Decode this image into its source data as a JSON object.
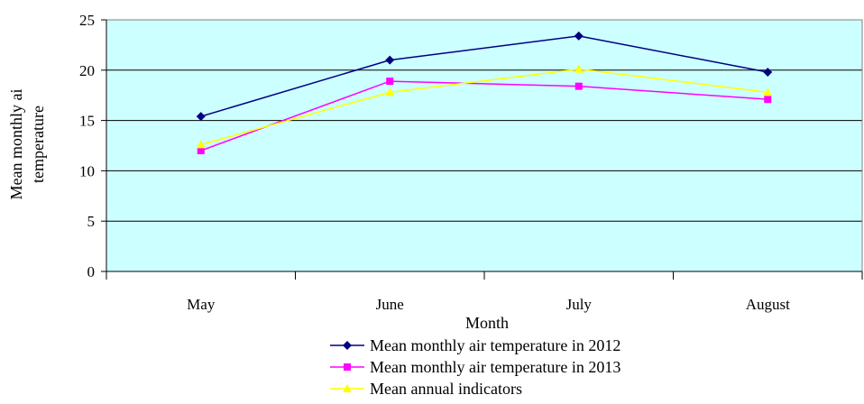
{
  "chart_data": {
    "type": "line",
    "title": "",
    "xlabel": "Month",
    "ylabel_lines": [
      "Mean  monthly ai",
      "temperature"
    ],
    "categories": [
      "May",
      "June",
      "July",
      "August"
    ],
    "ylim": [
      0,
      25
    ],
    "yticks": [
      0,
      5,
      10,
      15,
      20,
      25
    ],
    "grid": true,
    "plot_background": "#ccffff",
    "legend_position": "bottom",
    "series": [
      {
        "name": "Mean monthly air temperature in 2012",
        "values": [
          15.4,
          21.0,
          23.4,
          19.8
        ],
        "color": "#000080",
        "marker": "diamond"
      },
      {
        "name": "Mean monthly air temperature in 2013",
        "values": [
          12.0,
          18.9,
          18.4,
          17.1
        ],
        "color": "#ff00ff",
        "marker": "square"
      },
      {
        "name": "Mean annual indicators",
        "values": [
          12.6,
          17.8,
          20.1,
          17.8
        ],
        "color": "#ffff00",
        "marker": "triangle"
      }
    ]
  }
}
